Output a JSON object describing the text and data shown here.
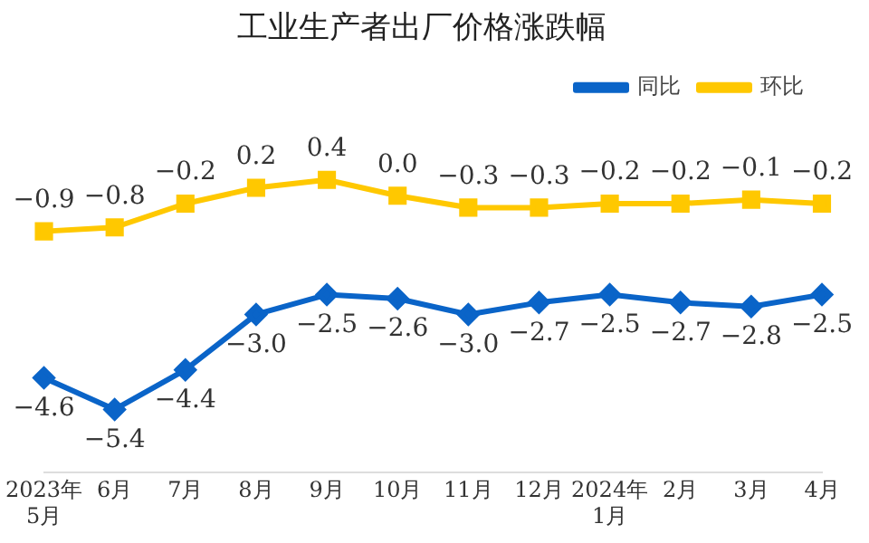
{
  "chart_data": {
    "type": "line",
    "title": "工业生产者出厂价格涨跌幅",
    "categories": [
      "2023年\n5月",
      "6月",
      "7月",
      "8月",
      "9月",
      "10月",
      "11月",
      "12月",
      "2024年\n1月",
      "2月",
      "3月",
      "4月"
    ],
    "series": [
      {
        "name": "同比",
        "color": "#0a64c8",
        "marker": "diamond",
        "values": [
          -4.6,
          -5.4,
          -4.4,
          -3.0,
          -2.5,
          -2.6,
          -3.0,
          -2.7,
          -2.5,
          -2.7,
          -2.8,
          -2.5
        ],
        "value_labels": [
          "−4.6",
          "−5.4",
          "−4.4",
          "−3.0",
          "−2.5",
          "−2.6",
          "−3.0",
          "−2.7",
          "−2.5",
          "−2.7",
          "−2.8",
          "−2.5"
        ]
      },
      {
        "name": "环比",
        "color": "#ffc800",
        "marker": "square",
        "values": [
          -0.9,
          -0.8,
          -0.2,
          0.2,
          0.4,
          0.0,
          -0.3,
          -0.3,
          -0.2,
          -0.2,
          -0.1,
          -0.2
        ],
        "value_labels": [
          "−0.9",
          "−0.8",
          "−0.2",
          "0.2",
          "0.4",
          "0.0",
          "−0.3",
          "−0.3",
          "−0.2",
          "−0.2",
          "−0.1",
          "−0.2"
        ]
      }
    ],
    "legend": "top right",
    "grid": false,
    "tick_labels": "x"
  }
}
